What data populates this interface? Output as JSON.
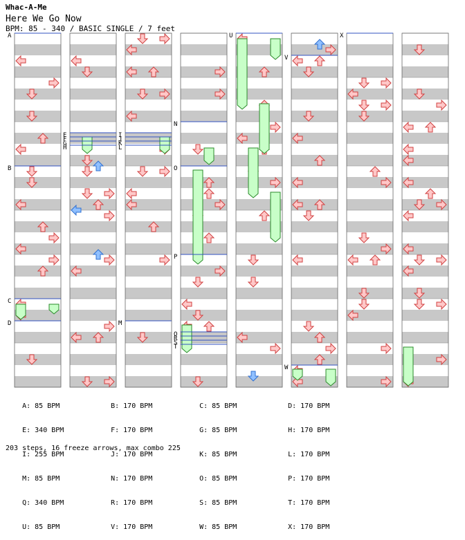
{
  "header": {
    "artist": "Whac-A-Me",
    "song": "Here We Go Now",
    "meta": "BPM: 85 - 340 / BASIC SINGLE / 7 feet"
  },
  "chart_data": {
    "type": "step-chart",
    "columns": 8,
    "section_labels": [
      {
        "col": 0,
        "label": "A"
      },
      {
        "col": 0,
        "label": "B"
      },
      {
        "col": 0,
        "label": "C"
      },
      {
        "col": 0,
        "label": "D"
      },
      {
        "col": 1,
        "label": "E"
      },
      {
        "col": 1,
        "label": "F"
      },
      {
        "col": 1,
        "label": "G"
      },
      {
        "col": 1,
        "label": "H"
      },
      {
        "col": 2,
        "label": "I"
      },
      {
        "col": 2,
        "label": "J"
      },
      {
        "col": 2,
        "label": "K"
      },
      {
        "col": 2,
        "label": "L"
      },
      {
        "col": 2,
        "label": "M"
      },
      {
        "col": 3,
        "label": "N"
      },
      {
        "col": 3,
        "label": "O"
      },
      {
        "col": 3,
        "label": "P"
      },
      {
        "col": 3,
        "label": "Q"
      },
      {
        "col": 3,
        "label": "R"
      },
      {
        "col": 3,
        "label": "S"
      },
      {
        "col": 3,
        "label": "T"
      },
      {
        "col": 4,
        "label": "U"
      },
      {
        "col": 4,
        "label": "V"
      },
      {
        "col": 4,
        "label": "W"
      },
      {
        "col": 5,
        "label": "X"
      }
    ]
  },
  "bpm_list": [
    [
      "A: 85 BPM",
      "B: 170 BPM",
      "C: 85 BPM",
      "D: 170 BPM"
    ],
    [
      "E: 340 BPM",
      "F: 170 BPM",
      "G: 85 BPM",
      "H: 170 BPM"
    ],
    [
      "I: 255 BPM",
      "J: 170 BPM",
      "K: 85 BPM",
      "L: 170 BPM"
    ],
    [
      "M: 85 BPM",
      "N: 170 BPM",
      "O: 85 BPM",
      "P: 170 BPM"
    ],
    [
      "Q: 340 BPM",
      "R: 170 BPM",
      "S: 85 BPM",
      "T: 170 BPM"
    ],
    [
      "U: 85 BPM",
      "V: 170 BPM",
      "W: 85 BPM",
      "X: 170 BPM"
    ]
  ],
  "summary": "203 steps, 16 freeze arrows, max combo 225",
  "colors": {
    "arrow_fill": "#ffc8c8",
    "arrow_stroke": "#d04040",
    "blue_arrow": "#90c0ff",
    "freeze": "#c8ffc8",
    "stripe": "#c8c8c8",
    "bpm_line": "#3050c0"
  }
}
